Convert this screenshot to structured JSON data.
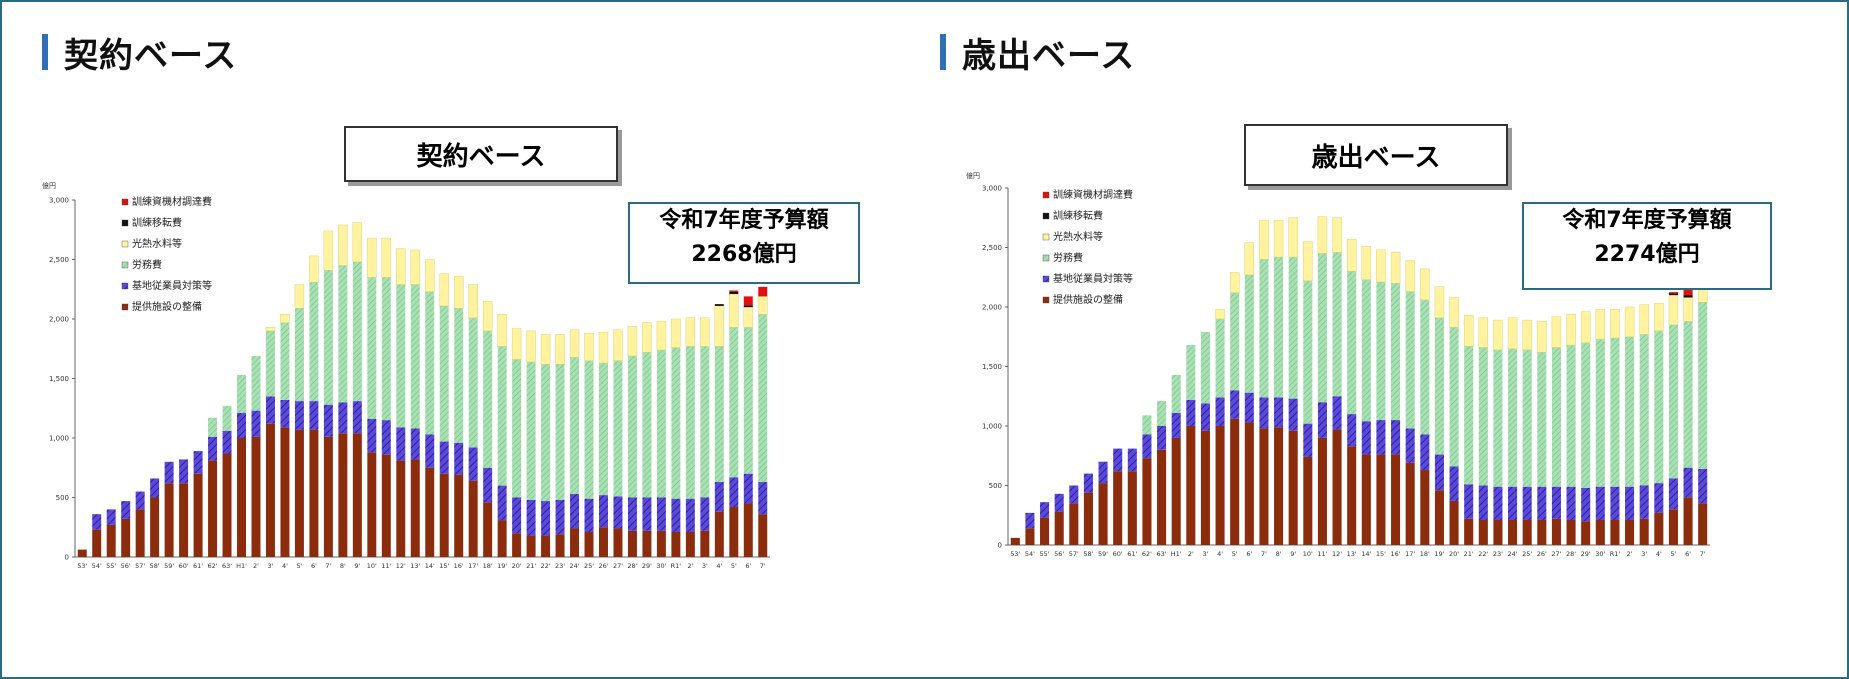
{
  "left": {
    "header": "契約ベース",
    "chart_title": "契約ベース",
    "budget": {
      "line1": "令和7年度予算額",
      "line2": "2268億円"
    }
  },
  "right": {
    "header": "歳出ベース",
    "chart_title": "歳出ベース",
    "budget": {
      "line1": "令和7年度予算額",
      "line2": "2274億円"
    }
  },
  "colors": {
    "facility": "#8b2c0c",
    "measures": "#5b4ad8",
    "labor": "#a9e0b4",
    "utilities": "#fff3a0",
    "relocation": "#111111",
    "equipment": "#e01010",
    "accent_bar": "#2f6fb7",
    "frame": "#2a6b7d"
  },
  "chart_data": [
    {
      "type": "bar",
      "stacked": true,
      "title": "契約ベース",
      "unit": "億円",
      "ylim": [
        0,
        3000
      ],
      "yticks": [
        "0",
        "500",
        "1,000",
        "1,500",
        "2,000",
        "2,500",
        "3,000"
      ],
      "categories": [
        "53'",
        "54'",
        "55'",
        "56'",
        "57'",
        "58'",
        "59'",
        "60'",
        "61'",
        "62'",
        "63'",
        "H1'",
        "2'",
        "3'",
        "4'",
        "5'",
        "6'",
        "7'",
        "8'",
        "9'",
        "10'",
        "11'",
        "12'",
        "13'",
        "14'",
        "15'",
        "16'",
        "17'",
        "18'",
        "19'",
        "20'",
        "21'",
        "22'",
        "23'",
        "24'",
        "25'",
        "26'",
        "27'",
        "28'",
        "29'",
        "30'",
        "R1'",
        "2'",
        "3'",
        "4'",
        "5'",
        "6'",
        "7'"
      ],
      "series": [
        {
          "name": "提供施設の整備",
          "values": [
            62,
            230,
            270,
            320,
            400,
            500,
            620,
            620,
            700,
            810,
            870,
            1000,
            1010,
            1120,
            1090,
            1070,
            1070,
            1010,
            1040,
            1040,
            880,
            860,
            810,
            820,
            750,
            700,
            690,
            640,
            460,
            310,
            200,
            180,
            180,
            190,
            240,
            210,
            250,
            240,
            220,
            220,
            220,
            210,
            210,
            220,
            380,
            420,
            450,
            360
          ]
        },
        {
          "name": "基地従業員対策等",
          "values": [
            0,
            130,
            130,
            150,
            150,
            160,
            180,
            200,
            190,
            200,
            190,
            210,
            220,
            230,
            230,
            240,
            240,
            270,
            260,
            270,
            280,
            290,
            280,
            260,
            280,
            270,
            270,
            280,
            290,
            290,
            300,
            300,
            290,
            290,
            290,
            280,
            270,
            270,
            280,
            280,
            280,
            280,
            280,
            280,
            250,
            250,
            250,
            270
          ]
        },
        {
          "name": "労務費",
          "values": [
            0,
            0,
            0,
            0,
            0,
            0,
            0,
            0,
            0,
            160,
            210,
            320,
            460,
            550,
            650,
            780,
            1000,
            1130,
            1150,
            1170,
            1190,
            1200,
            1200,
            1210,
            1200,
            1140,
            1130,
            1090,
            1150,
            1170,
            1160,
            1160,
            1150,
            1140,
            1150,
            1160,
            1110,
            1140,
            1190,
            1220,
            1240,
            1270,
            1280,
            1270,
            1140,
            1260,
            1230,
            1410
          ]
        },
        {
          "name": "光熱水料等",
          "values": [
            0,
            0,
            0,
            0,
            0,
            0,
            0,
            0,
            0,
            0,
            0,
            0,
            0,
            30,
            70,
            200,
            220,
            330,
            340,
            330,
            330,
            330,
            300,
            290,
            270,
            270,
            270,
            280,
            250,
            270,
            260,
            260,
            250,
            250,
            230,
            230,
            260,
            260,
            250,
            250,
            240,
            240,
            240,
            240,
            340,
            280,
            170,
            150
          ]
        },
        {
          "name": "訓練移転費",
          "values": [
            0,
            0,
            0,
            0,
            0,
            0,
            0,
            0,
            0,
            0,
            0,
            0,
            0,
            0,
            0,
            0,
            0,
            0,
            0,
            0,
            0,
            0,
            0,
            0,
            0,
            0,
            0,
            0,
            0,
            0,
            0,
            0,
            0,
            0,
            0,
            0,
            0,
            0,
            0,
            0,
            0,
            0,
            0,
            0,
            15,
            20,
            15,
            0
          ]
        },
        {
          "name": "訓練資機材調達費",
          "values": [
            0,
            0,
            0,
            0,
            0,
            0,
            0,
            0,
            0,
            0,
            0,
            0,
            0,
            0,
            0,
            0,
            0,
            0,
            0,
            0,
            0,
            0,
            0,
            0,
            0,
            0,
            0,
            0,
            0,
            0,
            0,
            0,
            0,
            0,
            0,
            0,
            0,
            0,
            0,
            0,
            0,
            0,
            0,
            0,
            0,
            10,
            75,
            80
          ]
        }
      ]
    },
    {
      "type": "bar",
      "stacked": true,
      "title": "歳出ベース",
      "unit": "億円",
      "ylim": [
        0,
        3000
      ],
      "yticks": [
        "0",
        "500",
        "1,000",
        "1,500",
        "2,000",
        "2,500",
        "3,000"
      ],
      "categories": [
        "53'",
        "54'",
        "55'",
        "56'",
        "57'",
        "58'",
        "59'",
        "60'",
        "61'",
        "62'",
        "63'",
        "H1'",
        "2'",
        "3'",
        "4'",
        "5'",
        "6'",
        "7'",
        "8'",
        "9'",
        "10'",
        "11'",
        "12'",
        "13'",
        "14'",
        "15'",
        "16'",
        "17'",
        "18'",
        "19'",
        "20'",
        "21'",
        "22'",
        "23'",
        "24'",
        "25'",
        "26'",
        "27'",
        "28'",
        "29'",
        "30'",
        "R1'",
        "2'",
        "3'",
        "4'",
        "5'",
        "6'",
        "7'"
      ],
      "series": [
        {
          "name": "提供施設の整備",
          "values": [
            60,
            140,
            230,
            280,
            350,
            440,
            520,
            620,
            620,
            730,
            800,
            900,
            1000,
            960,
            1000,
            1060,
            1030,
            980,
            990,
            960,
            740,
            900,
            970,
            830,
            760,
            760,
            760,
            690,
            630,
            460,
            370,
            220,
            210,
            210,
            210,
            210,
            210,
            220,
            210,
            200,
            210,
            210,
            210,
            220,
            270,
            300,
            400,
            350
          ]
        },
        {
          "name": "基地従業員対策等",
          "values": [
            0,
            130,
            130,
            150,
            150,
            160,
            180,
            190,
            190,
            200,
            200,
            210,
            220,
            230,
            240,
            240,
            250,
            260,
            250,
            270,
            280,
            300,
            280,
            270,
            280,
            290,
            290,
            290,
            300,
            300,
            290,
            290,
            290,
            280,
            280,
            280,
            280,
            270,
            280,
            280,
            280,
            280,
            280,
            280,
            250,
            260,
            250,
            290
          ]
        },
        {
          "name": "労務費",
          "values": [
            0,
            0,
            0,
            0,
            0,
            0,
            0,
            0,
            0,
            160,
            210,
            320,
            460,
            600,
            660,
            820,
            990,
            1160,
            1180,
            1190,
            1200,
            1250,
            1210,
            1200,
            1190,
            1160,
            1150,
            1150,
            1130,
            1150,
            1170,
            1160,
            1160,
            1150,
            1160,
            1150,
            1130,
            1170,
            1190,
            1220,
            1240,
            1250,
            1260,
            1270,
            1280,
            1290,
            1230,
            1400
          ]
        },
        {
          "name": "光熱水料等",
          "values": [
            0,
            0,
            0,
            0,
            0,
            0,
            0,
            0,
            0,
            0,
            0,
            0,
            0,
            0,
            80,
            170,
            270,
            330,
            310,
            330,
            330,
            310,
            290,
            270,
            280,
            270,
            260,
            260,
            260,
            260,
            250,
            260,
            250,
            250,
            260,
            250,
            260,
            260,
            260,
            260,
            250,
            240,
            250,
            250,
            230,
            250,
            200,
            150
          ]
        },
        {
          "name": "訓練移転費",
          "values": [
            0,
            0,
            0,
            0,
            0,
            0,
            0,
            0,
            0,
            0,
            0,
            0,
            0,
            0,
            0,
            0,
            0,
            0,
            0,
            0,
            0,
            0,
            0,
            0,
            0,
            0,
            0,
            0,
            0,
            0,
            0,
            0,
            0,
            0,
            0,
            0,
            0,
            0,
            0,
            0,
            0,
            0,
            0,
            0,
            0,
            15,
            20,
            0
          ]
        },
        {
          "name": "訓練資機材調達費",
          "values": [
            0,
            0,
            0,
            0,
            0,
            0,
            0,
            0,
            0,
            0,
            0,
            0,
            0,
            0,
            0,
            0,
            0,
            0,
            0,
            0,
            0,
            0,
            0,
            0,
            0,
            0,
            0,
            0,
            0,
            0,
            0,
            0,
            0,
            0,
            0,
            0,
            0,
            0,
            0,
            0,
            0,
            0,
            0,
            0,
            0,
            10,
            70,
            85
          ]
        }
      ]
    }
  ]
}
